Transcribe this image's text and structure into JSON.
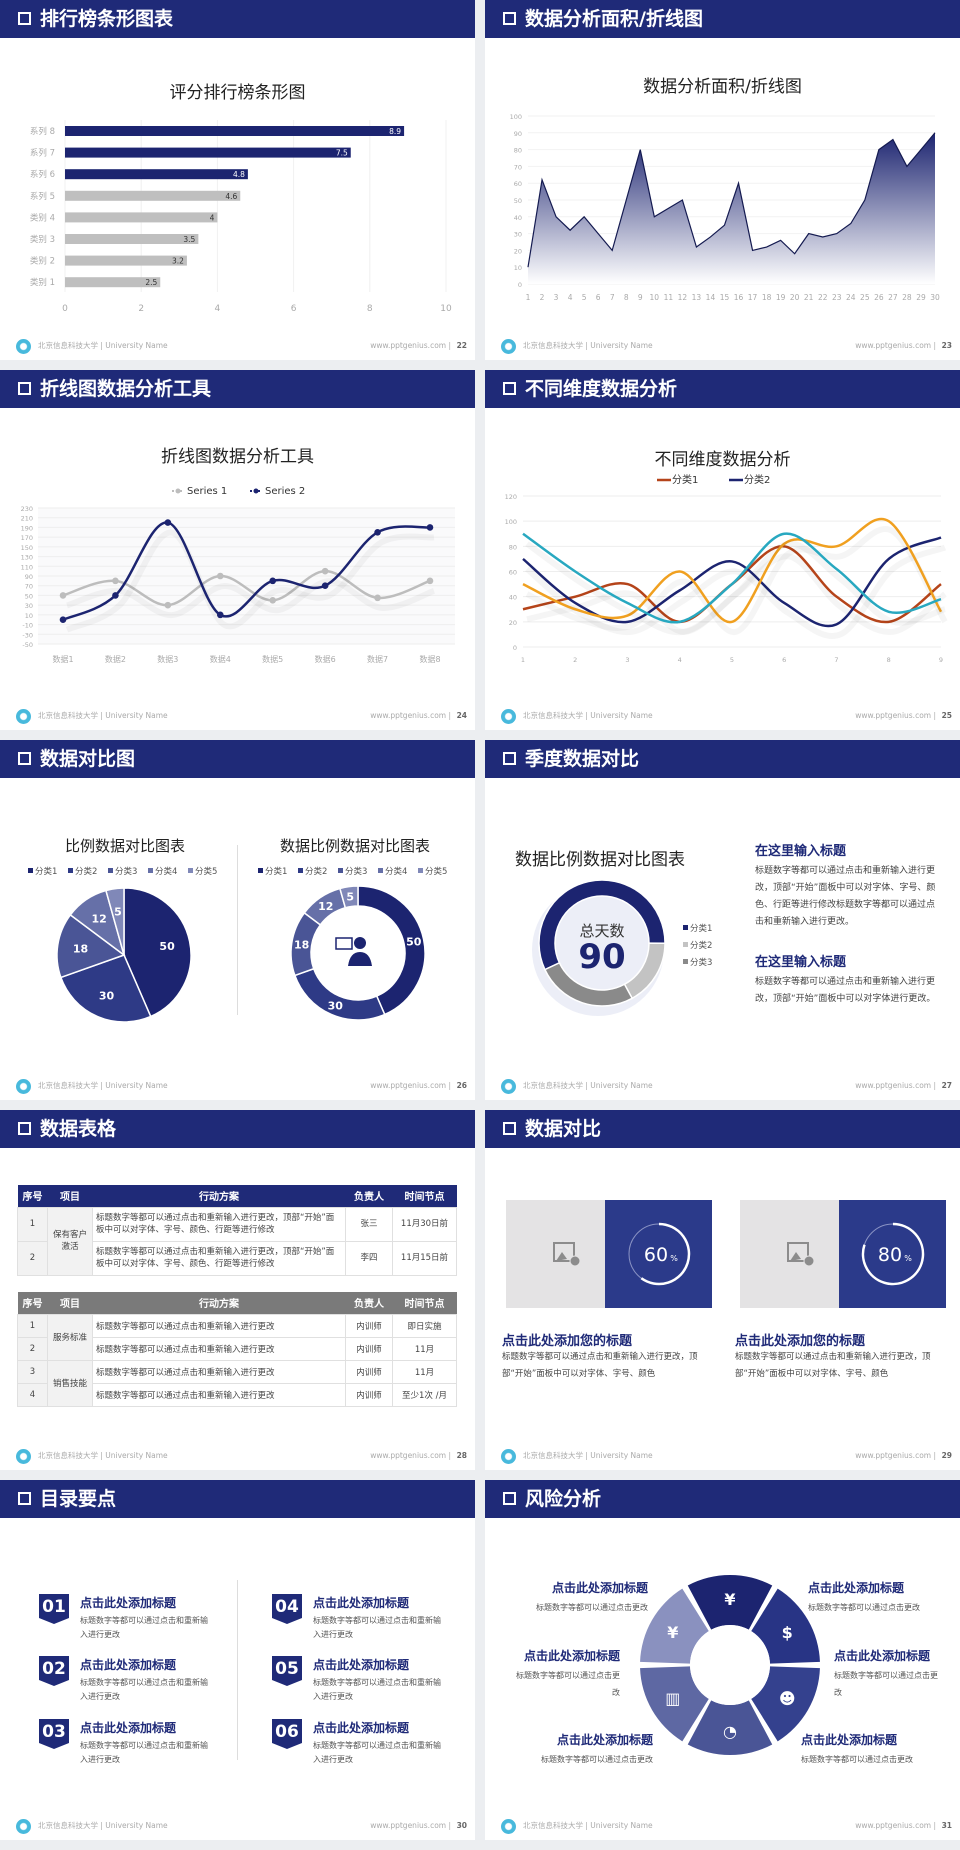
{
  "footer": {
    "org": "北京信息科技大学 | University Name",
    "site": "www.pptgenius.com  |"
  },
  "slides": [
    {
      "title": "排行榜条形图表",
      "page": "22"
    },
    {
      "title": "数据分析面积/折线图",
      "page": "23"
    },
    {
      "title": "折线图数据分析工具",
      "page": "24"
    },
    {
      "title": "不同维度数据分析",
      "page": "25"
    },
    {
      "title": "数据对比图",
      "page": "26"
    },
    {
      "title": "季度数据对比",
      "page": "27"
    },
    {
      "title": "数据表格",
      "page": "28"
    },
    {
      "title": "数据对比",
      "page": "29"
    },
    {
      "title": "目录要点",
      "page": "30"
    },
    {
      "title": "风险分析",
      "page": "31"
    }
  ],
  "colors": {
    "header": "#1f2a78",
    "navy": "#1c2470",
    "gray_bar": "#bfbfbf",
    "orange": "#f0a020",
    "teal": "#28a8c0",
    "brown": "#b5441a"
  },
  "chart_data": [
    {
      "type": "bar",
      "orientation": "horizontal",
      "title": "评分排行榜条形图",
      "categories": [
        "系列 8",
        "系列 7",
        "系列 6",
        "系列 5",
        "类别 4",
        "类别 3",
        "类别 2",
        "类别 1"
      ],
      "values": [
        8.9,
        7.5,
        4.8,
        4.6,
        4,
        3.5,
        3.2,
        2.5
      ],
      "bar_colors": [
        "#1c2470",
        "#1c2470",
        "#1c2470",
        "#bfbfbf",
        "#bfbfbf",
        "#bfbfbf",
        "#bfbfbf",
        "#bfbfbf"
      ],
      "xlim": [
        0,
        10
      ],
      "xticks": [
        "0",
        "2",
        "4",
        "6",
        "8",
        "10"
      ],
      "grid": true
    },
    {
      "type": "area",
      "title": "数据分析面积/折线图",
      "x": [
        "1",
        "2",
        "3",
        "4",
        "5",
        "6",
        "7",
        "8",
        "9",
        "10",
        "11",
        "12",
        "13",
        "14",
        "15",
        "16",
        "17",
        "18",
        "19",
        "20",
        "21",
        "22",
        "23",
        "24",
        "25",
        "26",
        "27",
        "28",
        "29",
        "30"
      ],
      "values": [
        10,
        62,
        40,
        32,
        40,
        30,
        20,
        50,
        80,
        40,
        45,
        50,
        22,
        28,
        35,
        60,
        20,
        22,
        26,
        18,
        30,
        28,
        30,
        36,
        50,
        80,
        86,
        70,
        80,
        90
      ],
      "ylim": [
        0,
        100
      ],
      "yticks": [
        "0",
        "10",
        "20",
        "30",
        "40",
        "50",
        "60",
        "70",
        "80",
        "90",
        "100"
      ],
      "color": "#1c2470",
      "grid": true
    },
    {
      "type": "line",
      "smooth": true,
      "title": "折线图数据分析工具",
      "categories": [
        "数据1",
        "数据2",
        "数据3",
        "数据4",
        "数据5",
        "数据6",
        "数据7",
        "数据8"
      ],
      "series": [
        {
          "name": "Series 1",
          "values": [
            50,
            80,
            30,
            90,
            40,
            100,
            45,
            80
          ],
          "color": "#bdbdbd"
        },
        {
          "name": "Series 2",
          "values": [
            0,
            50,
            200,
            10,
            80,
            70,
            180,
            190
          ],
          "color": "#1c2470"
        }
      ],
      "ylim": [
        -50,
        230
      ],
      "yticks": [
        "-50",
        "-30",
        "-10",
        "10",
        "30",
        "50",
        "70",
        "90",
        "110",
        "130",
        "150",
        "170",
        "190",
        "210",
        "230"
      ],
      "legend": "top",
      "grid": true
    },
    {
      "type": "line",
      "smooth": true,
      "title": "不同维度数据分析",
      "x": [
        "1",
        "2",
        "3",
        "4",
        "5",
        "6",
        "7",
        "8",
        "9"
      ],
      "series": [
        {
          "name": "分类1",
          "values": [
            30,
            40,
            50,
            20,
            50,
            80,
            40,
            20,
            50
          ],
          "color": "#b5441a"
        },
        {
          "name": "分类2",
          "values": [
            70,
            35,
            20,
            45,
            68,
            35,
            18,
            70,
            87
          ],
          "color": "#1c2470"
        },
        {
          "values": [
            50,
            30,
            25,
            60,
            20,
            82,
            80,
            100,
            28
          ],
          "color": "#f0a020"
        },
        {
          "values": [
            90,
            60,
            35,
            20,
            50,
            90,
            62,
            28,
            38
          ],
          "color": "#28a8c0"
        }
      ],
      "ylim": [
        0,
        120
      ],
      "yticks": [
        "0",
        "20",
        "40",
        "60",
        "80",
        "100",
        "120"
      ],
      "legend": "top",
      "grid": true
    },
    {
      "type": "pie",
      "title": "比例数据对比图表",
      "categories": [
        "分类1",
        "分类2",
        "分类3",
        "分类4",
        "分类5"
      ],
      "values": [
        50,
        30,
        18,
        12,
        5
      ],
      "colors": [
        "#1c2470",
        "#2e3a86",
        "#4a5596",
        "#6670a8",
        "#8088b8"
      ],
      "labels": [
        "50",
        "30",
        "18",
        "12",
        "5"
      ],
      "legend": "top"
    },
    {
      "type": "pie",
      "variant": "doughnut",
      "title": "数据比例数据对比图表",
      "categories": [
        "分类1",
        "分类2",
        "分类3",
        "分类4",
        "分类5"
      ],
      "values": [
        50,
        30,
        18,
        12,
        5
      ],
      "colors": [
        "#1c2470",
        "#2e3a86",
        "#4a5596",
        "#6670a8",
        "#8088b8"
      ],
      "labels": [
        "50",
        "30",
        "18",
        "12",
        "5"
      ],
      "legend": "top",
      "center_icon": "presenter-icon"
    },
    {
      "type": "pie",
      "variant": "doughnut",
      "title": "数据比例数据对比图表",
      "categories": [
        "分类1",
        "分类2",
        "分类3"
      ],
      "values": [
        57,
        17,
        26
      ],
      "colors": [
        "#1c2470",
        "#c3c3c3",
        "#8a8a8a"
      ],
      "center_label": "总天数",
      "center_value": "90",
      "legend": "right"
    }
  ],
  "s27": {
    "blocks": [
      {
        "heading": "在这里输入标题",
        "text": "标题数字等都可以通过点击和重新输入进行更改，顶部“开始”面板中可以对字体、字号、颜色、行距等进行修改标题数字等都可以通过点击和重新输入进行更改。"
      },
      {
        "heading": "在这里输入标题",
        "text": "标题数字等都可以通过点击和重新输入进行更改，顶部“开始”面板中可以对字体进行更改。"
      }
    ]
  },
  "s28": {
    "headers": [
      "序号",
      "项目",
      "行动方案",
      "负责人",
      "时间节点"
    ],
    "table1": {
      "group": "保有客户激活",
      "rows": [
        {
          "no": "1",
          "action": "标题数字等都可以通过点击和重新输入进行更改，顶部“开始”面板中可以对字体、字号、颜色、行距等进行修改",
          "owner": "张三",
          "time": "11月30日前"
        },
        {
          "no": "2",
          "action": "标题数字等都可以通过点击和重新输入进行更改，顶部“开始”面板中可以对字体、字号、颜色、行距等进行修改",
          "owner": "李四",
          "time": "11月15日前"
        }
      ]
    },
    "table2": {
      "groups": [
        "服务标准",
        "销售技能"
      ],
      "rows": [
        {
          "no": "1",
          "action": "标题数字等都可以通过点击和重新输入进行更改",
          "owner": "内训师",
          "time": "即日实施"
        },
        {
          "no": "2",
          "action": "标题数字等都可以通过点击和重新输入进行更改",
          "owner": "内训师",
          "time": "11月"
        },
        {
          "no": "3",
          "action": "标题数字等都可以通过点击和重新输入进行更改",
          "owner": "内训师",
          "time": "11月"
        },
        {
          "no": "4",
          "action": "标题数字等都可以通过点击和重新输入进行更改",
          "owner": "内训师",
          "time": "至少1次 /月"
        }
      ]
    }
  },
  "s29": {
    "cards": [
      {
        "percent": 60,
        "value": "60",
        "unit": "%",
        "heading": "点击此处添加您的标题",
        "text": "标题数字等都可以通过点击和重新输入进行更改，顶部“开始”面板中可以对字体、字号、颜色"
      },
      {
        "percent": 80,
        "value": "80",
        "unit": "%",
        "heading": "点击此处添加您的标题",
        "text": "标题数字等都可以通过点击和重新输入进行更改，顶部“开始”面板中可以对字体、字号、颜色"
      }
    ]
  },
  "s30": {
    "items": [
      {
        "num": "01",
        "title": "点击此处添加标题",
        "text": "标题数字等都可以通过点击和重新输入进行更改"
      },
      {
        "num": "02",
        "title": "点击此处添加标题",
        "text": "标题数字等都可以通过点击和重新输入进行更改"
      },
      {
        "num": "03",
        "title": "点击此处添加标题",
        "text": "标题数字等都可以通过点击和重新输入进行更改"
      },
      {
        "num": "04",
        "title": "点击此处添加标题",
        "text": "标题数字等都可以通过点击和重新输入进行更改"
      },
      {
        "num": "05",
        "title": "点击此处添加标题",
        "text": "标题数字等都可以通过点击和重新输入进行更改"
      },
      {
        "num": "06",
        "title": "点击此处添加标题",
        "text": "标题数字等都可以通过点击和重新输入进行更改"
      }
    ]
  },
  "s31": {
    "items": [
      {
        "title": "点击此处添加标题",
        "text": "标题数字等都可以通过点击更改",
        "icon": "money-bag-icon",
        "glyph": "¥"
      },
      {
        "title": "点击此处添加标题",
        "text": "标题数字等都可以通过点击更改",
        "icon": "coins-icon",
        "glyph": "$"
      },
      {
        "title": "点击此处添加标题",
        "text": "标题数字等都可以通过点击更改",
        "icon": "people-icon",
        "glyph": "☻"
      },
      {
        "title": "点击此处添加标题",
        "text": "标题数字等都可以通过点击更改",
        "icon": "pie-chart-icon",
        "glyph": "◔"
      },
      {
        "title": "点击此处添加标题",
        "text": "标题数字等都可以通过点击更改",
        "icon": "building-icon",
        "glyph": "▥"
      },
      {
        "title": "点击此处添加标题",
        "text": "标题数字等都可以通过点击更改",
        "icon": "yen-hand-icon",
        "glyph": "¥"
      }
    ]
  }
}
